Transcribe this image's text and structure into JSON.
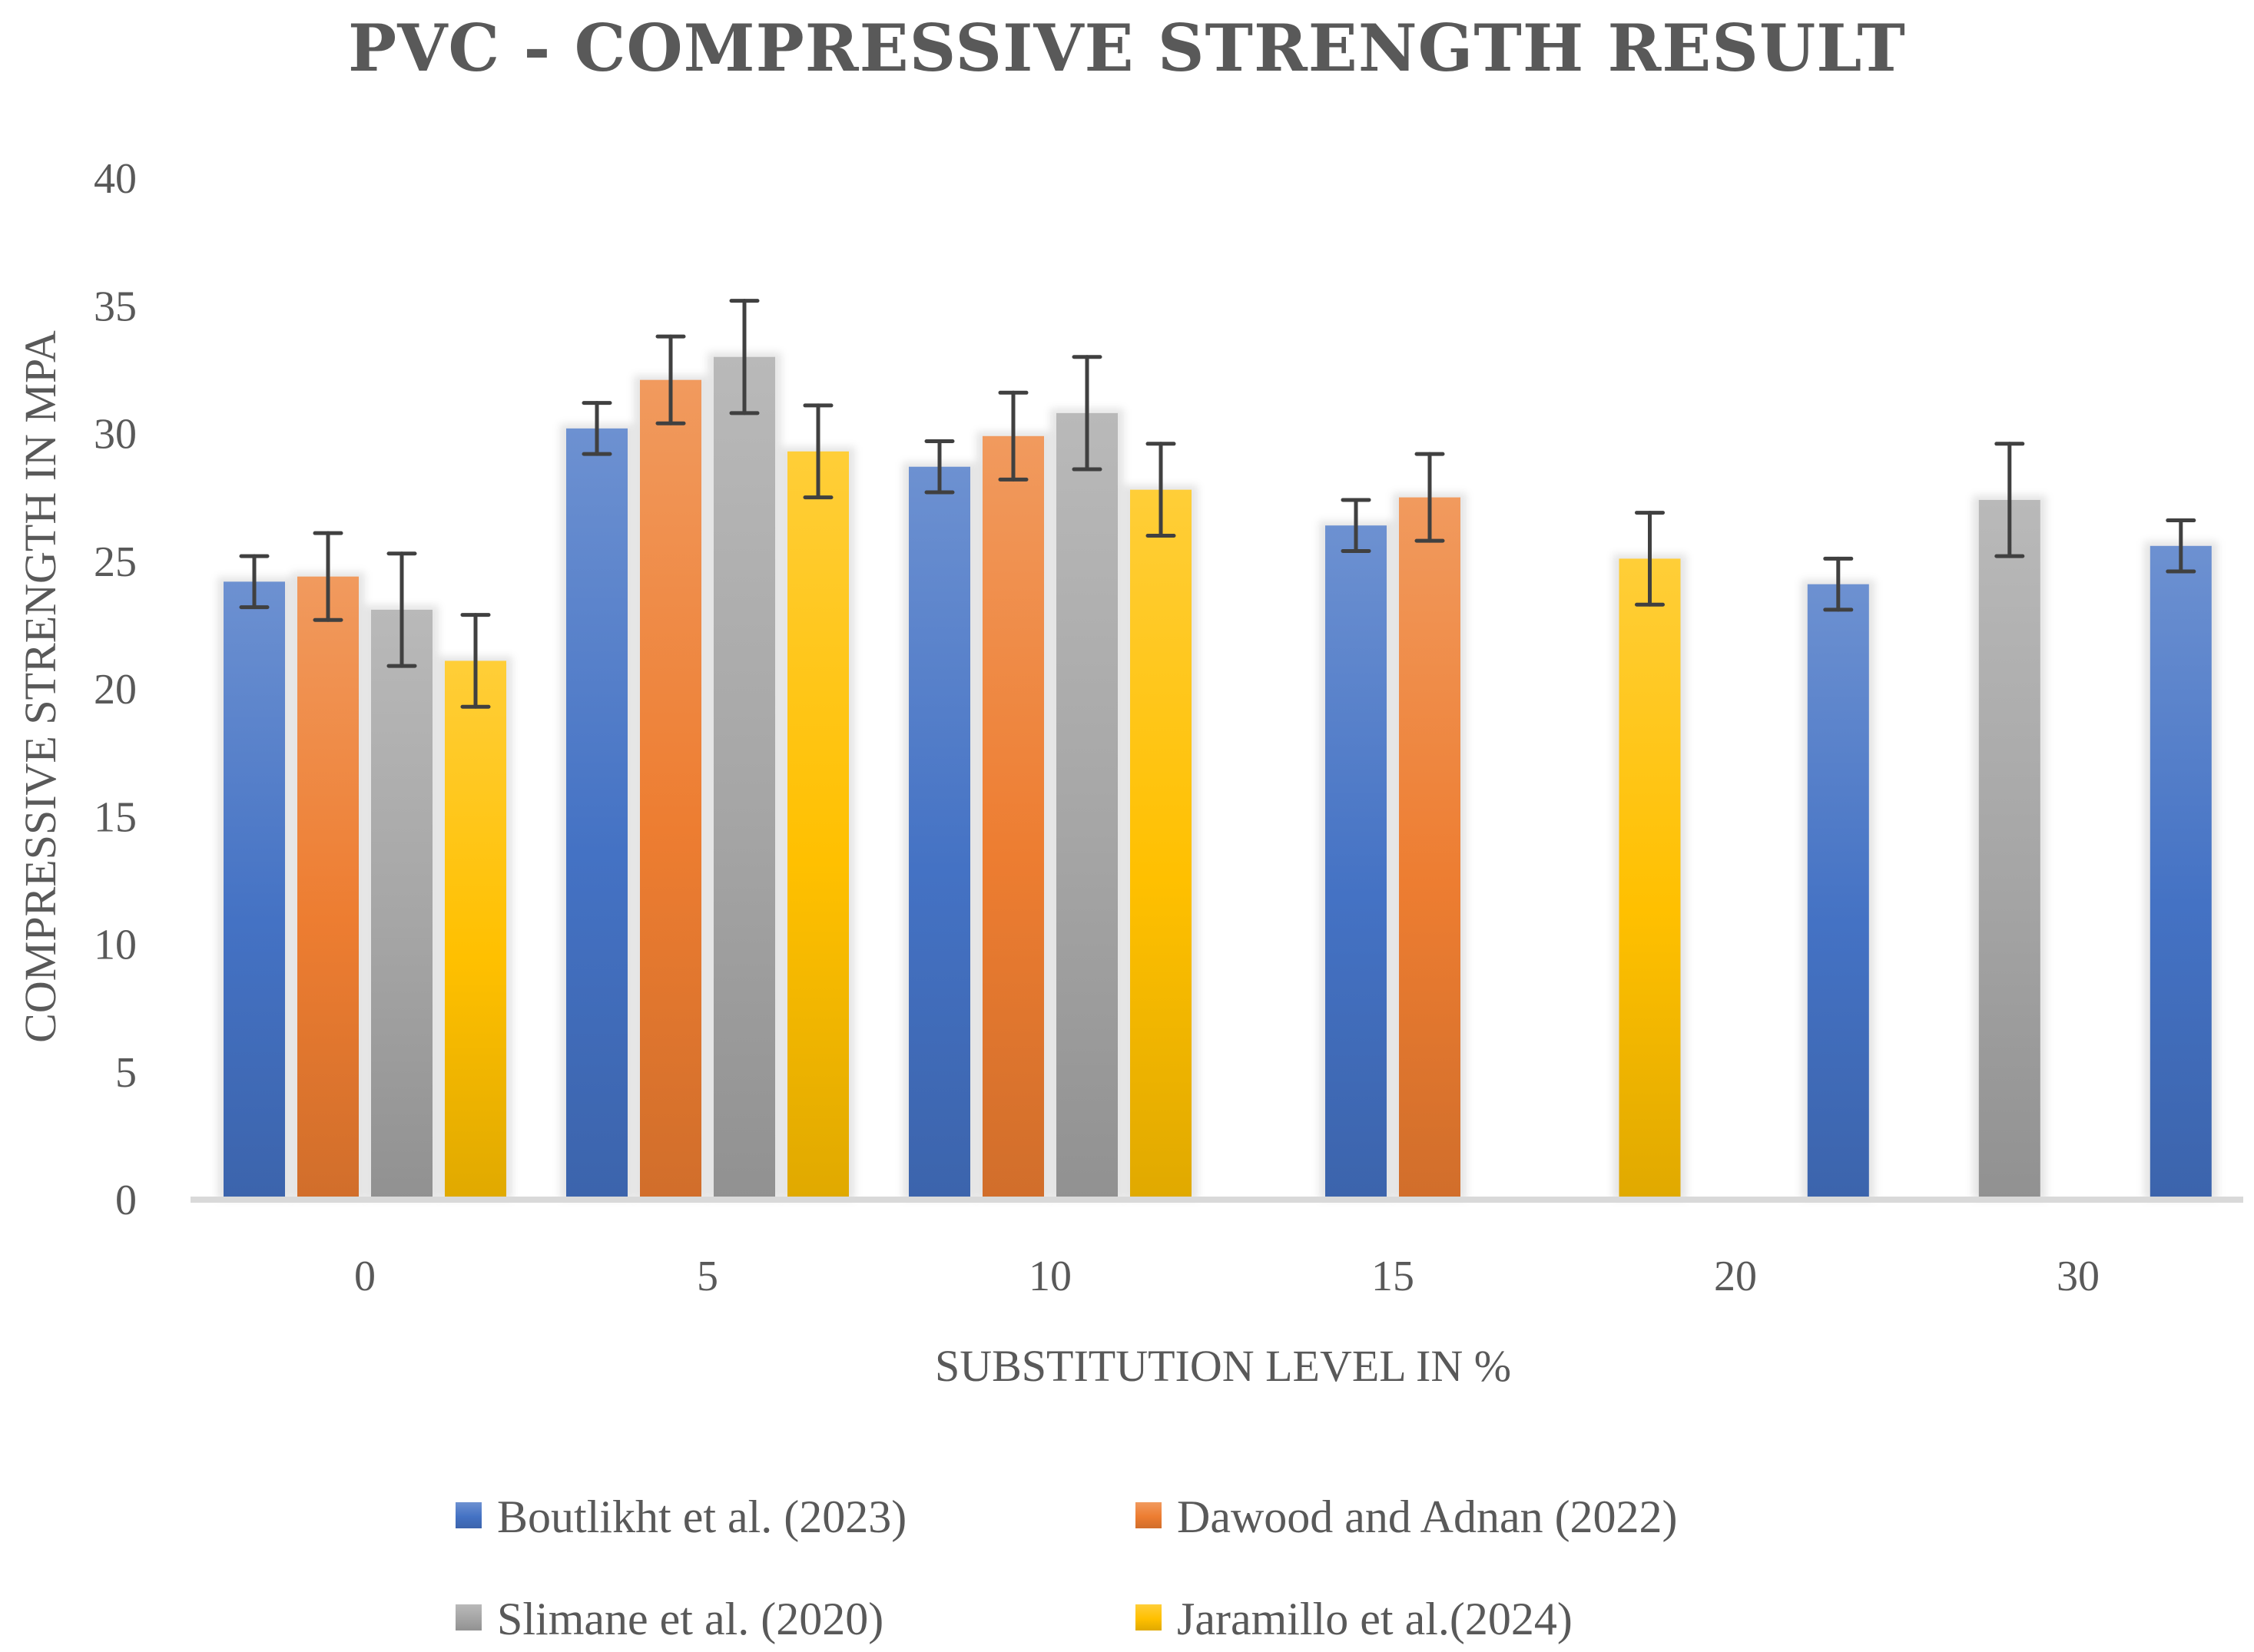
{
  "chart_data": {
    "type": "bar",
    "title": "PVC - COMPRESSIVE STRENGTH RESULT",
    "xlabel": "SUBSTITUTION LEVEL IN %",
    "ylabel": "COMPRESSIVE STRENGTH IN MPA",
    "ylim": [
      0,
      40
    ],
    "yticks": [
      "0",
      "5",
      "10",
      "15",
      "20",
      "25",
      "30",
      "35",
      "40"
    ],
    "categories": [
      "0",
      "5",
      "10",
      "15",
      "20",
      "30"
    ],
    "grid": false,
    "legend_position": "bottom",
    "series": [
      {
        "name": "Boutlikht et al. (2023)",
        "color": "#4472C4",
        "values": [
          24.2,
          30.2,
          28.7,
          26.4,
          24.1,
          25.6
        ],
        "errors": [
          1.0,
          1.0,
          1.0,
          1.0,
          1.0,
          1.0
        ]
      },
      {
        "name": "Dawood and Adnan (2022)",
        "color": "#ED7D31",
        "values": [
          24.4,
          32.1,
          29.9,
          27.5,
          null,
          null
        ],
        "errors": [
          1.7,
          1.7,
          1.7,
          1.7,
          null,
          null
        ]
      },
      {
        "name": "Slimane et al. (2020)",
        "color": "#A5A5A5",
        "values": [
          23.1,
          33.0,
          30.8,
          null,
          27.4,
          null
        ],
        "errors": [
          2.2,
          2.2,
          2.2,
          null,
          2.2,
          null
        ]
      },
      {
        "name": "Jaramillo et al.(2024)",
        "color": "#FFC000",
        "values": [
          21.1,
          29.3,
          27.8,
          25.1,
          null,
          null
        ],
        "errors": [
          1.8,
          1.8,
          1.8,
          1.8,
          null,
          null
        ]
      }
    ],
    "bar_slots": [
      [
        0,
        0,
        1,
        2,
        3
      ],
      [
        1,
        0,
        1,
        2,
        3
      ],
      [
        2,
        0,
        1,
        2,
        3
      ],
      [
        3,
        0,
        1
      ],
      [
        3.75,
        3
      ],
      [
        4.3,
        0
      ],
      [
        4.8,
        2
      ],
      [
        5.3,
        0
      ]
    ]
  }
}
